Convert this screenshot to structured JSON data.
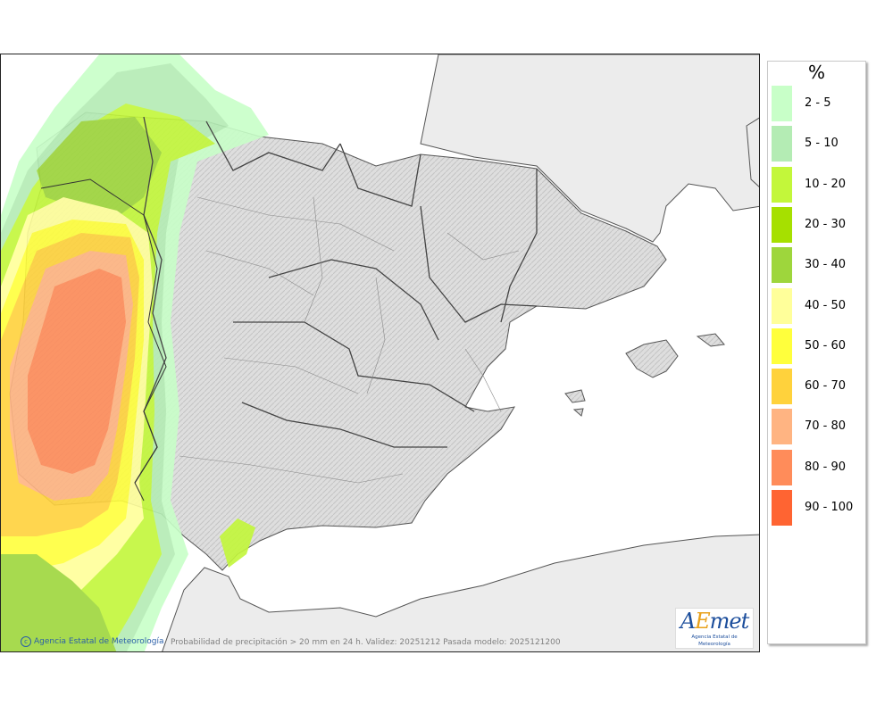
{
  "legend": {
    "title": "%",
    "items": [
      {
        "label": "2 - 5",
        "color": "#c8ffc8"
      },
      {
        "label": "5 - 10",
        "color": "#b4ecb4"
      },
      {
        "label": "10 - 20",
        "color": "#c3f73a"
      },
      {
        "label": "20 - 30",
        "color": "#a6e000"
      },
      {
        "label": "30 - 40",
        "color": "#9ed63c"
      },
      {
        "label": "40 - 50",
        "color": "#ffff9a"
      },
      {
        "label": "50 - 60",
        "color": "#ffff3c"
      },
      {
        "label": "60 - 70",
        "color": "#ffd23c"
      },
      {
        "label": "70 - 80",
        "color": "#ffb482"
      },
      {
        "label": "80 - 90",
        "color": "#ff8c5a"
      },
      {
        "label": "90 - 100",
        "color": "#ff6432"
      }
    ]
  },
  "footer": {
    "credit": "Agencia Estatal de Meteorología",
    "caption": "Probabilidad de precipitación > 20 mm en 24 h. Validez: 20251212 Pasada modelo: 2025121200"
  },
  "logo": {
    "letter_a": "A",
    "letter_e": "E",
    "rest": "met",
    "subtitle": "Agencia Estatal de Meteorología"
  }
}
